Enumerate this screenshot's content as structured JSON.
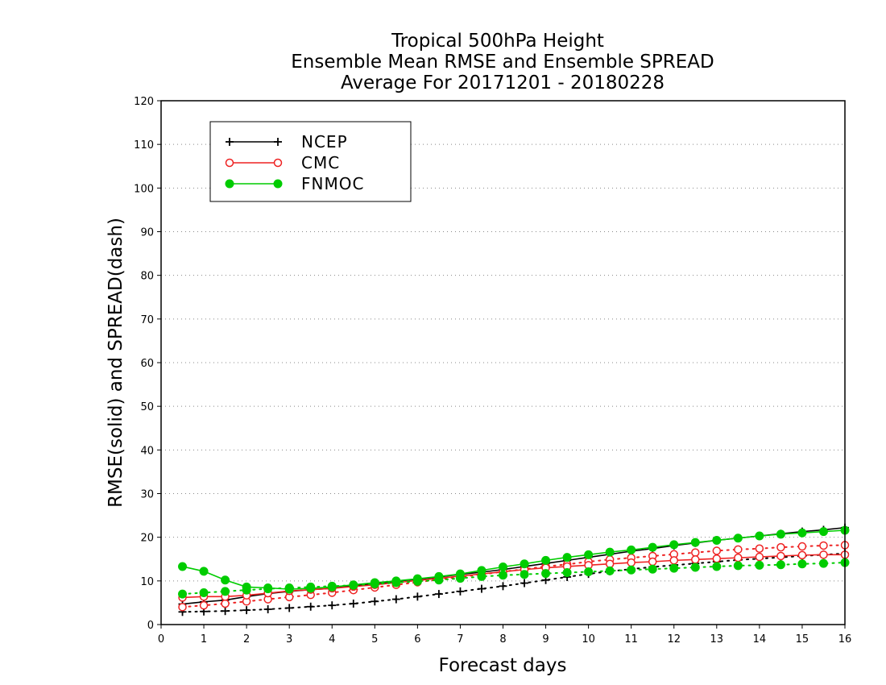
{
  "chart_data": {
    "type": "line",
    "title_lines": [
      "Tropical 500hPa Height",
      "Ensemble Mean RMSE and Ensemble SPREAD",
      "Average For 20171201 - 20180228"
    ],
    "xlabel": "Forecast days",
    "ylabel": "RMSE(solid) and SPREAD(dash)",
    "xlim": [
      0,
      16
    ],
    "ylim": [
      0,
      120
    ],
    "xticks": [
      0,
      1,
      2,
      3,
      4,
      5,
      6,
      7,
      8,
      9,
      10,
      11,
      12,
      13,
      14,
      15,
      16
    ],
    "yticks": [
      0,
      10,
      20,
      30,
      40,
      50,
      60,
      70,
      80,
      90,
      100,
      110,
      120
    ],
    "grid": "horizontal dotted",
    "legend_position": "top-left",
    "x": [
      0.5,
      1,
      1.5,
      2,
      2.5,
      3,
      3.5,
      4,
      4.5,
      5,
      5.5,
      6,
      6.5,
      7,
      7.5,
      8,
      8.5,
      9,
      9.5,
      10,
      10.5,
      11,
      11.5,
      12,
      12.5,
      13,
      13.5,
      14,
      14.5,
      15,
      15.5,
      16
    ],
    "series": [
      {
        "name": "NCEP",
        "color": "#000000",
        "marker": "plus",
        "rmse": [
          4.7,
          5.2,
          5.6,
          6.4,
          7.1,
          7.6,
          8.0,
          8.3,
          8.9,
          9.4,
          9.9,
          10.4,
          10.9,
          11.5,
          12.0,
          12.6,
          13.3,
          14.0,
          14.7,
          15.4,
          16.1,
          16.8,
          17.4,
          18.1,
          18.7,
          19.3,
          19.8,
          20.3,
          20.8,
          21.3,
          21.7,
          22.2
        ],
        "spread": [
          2.9,
          3.0,
          3.1,
          3.3,
          3.5,
          3.8,
          4.1,
          4.4,
          4.8,
          5.3,
          5.8,
          6.4,
          7.0,
          7.6,
          8.2,
          8.8,
          9.5,
          10.2,
          10.9,
          11.6,
          12.2,
          12.7,
          13.2,
          13.6,
          14.0,
          14.4,
          14.8,
          15.1,
          15.4,
          15.7,
          16.0,
          16.3
        ]
      },
      {
        "name": "CMC",
        "color": "#ee2222",
        "marker": "open-circle",
        "rmse": [
          6.2,
          6.4,
          6.4,
          6.7,
          7.2,
          7.7,
          8.0,
          8.3,
          8.7,
          9.1,
          9.6,
          10.1,
          10.6,
          11.1,
          11.6,
          12.1,
          12.6,
          13.0,
          13.3,
          13.6,
          13.9,
          14.2,
          14.4,
          14.7,
          14.9,
          15.1,
          15.3,
          15.5,
          15.7,
          15.9,
          16.0,
          16.0
        ],
        "spread": [
          4.0,
          4.4,
          4.8,
          5.3,
          5.8,
          6.3,
          6.8,
          7.3,
          7.9,
          8.5,
          9.1,
          9.7,
          10.3,
          10.9,
          11.5,
          12.1,
          12.7,
          13.3,
          13.8,
          14.4,
          14.9,
          15.3,
          15.7,
          16.1,
          16.5,
          16.9,
          17.2,
          17.4,
          17.7,
          17.9,
          18.1,
          18.2
        ]
      },
      {
        "name": "FNMOC",
        "color": "#00cc00",
        "marker": "filled-circle",
        "rmse": [
          13.3,
          12.2,
          10.2,
          8.6,
          8.4,
          8.1,
          8.3,
          8.6,
          9.1,
          9.6,
          10.0,
          10.5,
          11.0,
          11.6,
          12.4,
          13.2,
          13.9,
          14.7,
          15.4,
          16.0,
          16.6,
          17.1,
          17.7,
          18.3,
          18.8,
          19.3,
          19.8,
          20.3,
          20.7,
          21.0,
          21.3,
          21.6
        ],
        "spread": [
          7.0,
          7.3,
          7.6,
          7.9,
          8.2,
          8.4,
          8.6,
          8.8,
          9.0,
          9.3,
          9.6,
          9.9,
          10.2,
          10.6,
          11.0,
          11.3,
          11.5,
          11.7,
          11.9,
          12.1,
          12.3,
          12.5,
          12.7,
          12.9,
          13.1,
          13.3,
          13.5,
          13.6,
          13.7,
          13.9,
          14.0,
          14.2
        ]
      }
    ]
  }
}
